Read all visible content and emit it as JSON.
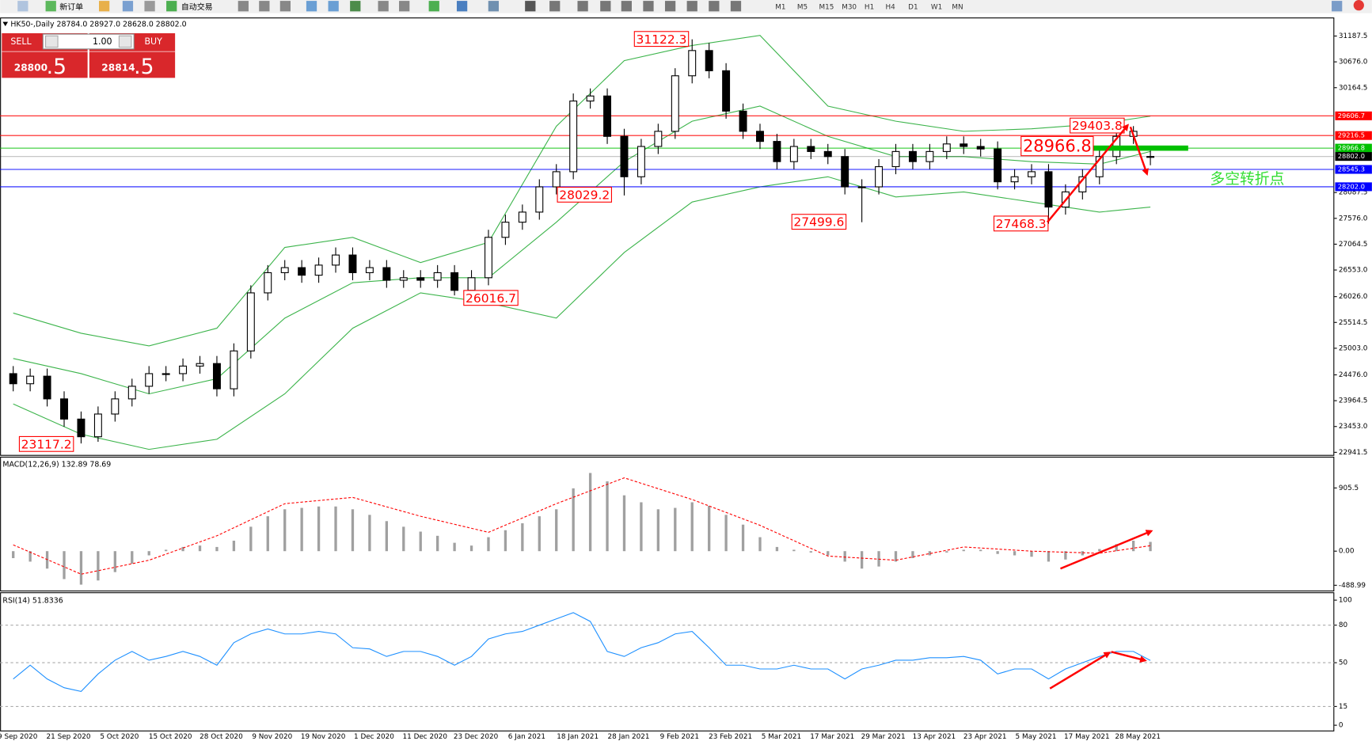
{
  "toolbar": {
    "new_order": "新订单",
    "auto_trading": "自动交易",
    "timeframes": [
      "M1",
      "M5",
      "M15",
      "M30",
      "H1",
      "H4",
      "D1",
      "W1",
      "MN"
    ]
  },
  "trade_panel": {
    "sell": "SELL",
    "lot": "1.00",
    "buy": "BUY",
    "sell_price_main": "28800",
    "sell_price_frac": ".5",
    "buy_price_main": "28814",
    "buy_price_frac": ".5"
  },
  "chart_data": [
    {
      "type": "candlestick",
      "title": "HK50-,Daily 28784.0 28927.0 28628.0 28802.0",
      "categories": [
        "9 Sep 2020",
        null,
        null,
        "21 Sep 2020",
        null,
        null,
        "5 Oct 2020",
        null,
        null,
        "15 Oct 2020",
        null,
        null,
        "28 Oct 2020",
        null,
        null,
        "9 Nov 2020",
        null,
        null,
        "19 Nov 2020",
        null,
        null,
        "1 Dec 2020",
        null,
        null,
        "11 Dec 2020",
        null,
        null,
        "23 Dec 2020",
        null,
        null,
        "6 Jan 2021",
        null,
        null,
        "18 Jan 2021",
        null,
        null,
        "28 Jan 2021",
        null,
        null,
        "9 Feb 2021",
        null,
        null,
        "23 Feb 2021",
        null,
        null,
        "5 Mar 2021",
        null,
        null,
        "17 Mar 2021",
        null,
        null,
        "29 Mar 2021",
        null,
        null,
        "13 Apr 2021",
        null,
        null,
        "23 Apr 2021",
        null,
        null,
        "5 May 2021",
        null,
        null,
        "17 May 2021",
        null,
        null,
        "28 May 2021",
        null
      ],
      "open": [
        24500,
        24300,
        24450,
        24000,
        23600,
        23250,
        23700,
        24000,
        24250,
        24500,
        24500,
        24650,
        24700,
        24200,
        24950,
        26100,
        26500,
        26600,
        26450,
        26650,
        26850,
        26500,
        26600,
        26350,
        26400,
        26350,
        26500,
        26150,
        26400,
        27200,
        27500,
        27700,
        28200,
        28500,
        29900,
        30000,
        29200,
        28400,
        29000,
        29300,
        30400,
        30900,
        30500,
        29700,
        29300,
        29100,
        28700,
        29000,
        28900,
        28800,
        28200,
        28200,
        28600,
        28900,
        28700,
        28900,
        29050,
        29000,
        28950,
        28300,
        28400,
        28500,
        27800,
        28100,
        28400,
        28800,
        29200,
        28784.0
      ],
      "high": [
        24650,
        24600,
        24600,
        24150,
        23750,
        23850,
        24150,
        24400,
        24650,
        24650,
        24800,
        24850,
        24850,
        25100,
        26250,
        26650,
        26750,
        26750,
        26800,
        27000,
        27000,
        26750,
        26750,
        26550,
        26550,
        26650,
        26650,
        26550,
        27350,
        27650,
        27850,
        28350,
        28650,
        30050,
        30150,
        30150,
        29350,
        29150,
        29450,
        30550,
        31122.3,
        31050,
        30650,
        29850,
        29450,
        29250,
        29150,
        29150,
        29050,
        28950,
        28350,
        28750,
        29050,
        29050,
        29050,
        29200,
        29200,
        29150,
        29100,
        28550,
        28650,
        28650,
        28250,
        28550,
        28950,
        29350,
        29403.8,
        28927.0
      ],
      "low": [
        24150,
        24150,
        23850,
        23450,
        23117.2,
        23150,
        23550,
        23850,
        24100,
        24350,
        24350,
        24500,
        24050,
        24050,
        24800,
        25950,
        26350,
        26300,
        26300,
        26500,
        26350,
        26350,
        26200,
        26200,
        26200,
        26200,
        26050,
        26016.7,
        26250,
        27050,
        27350,
        27550,
        28050,
        28350,
        29750,
        29050,
        28029.2,
        28250,
        28850,
        29150,
        30250,
        30350,
        29550,
        29150,
        28950,
        28550,
        28550,
        28750,
        28650,
        28050,
        27499.6,
        28050,
        28450,
        28550,
        28550,
        28750,
        28850,
        28800,
        28150,
        28150,
        28250,
        27468.3,
        27650,
        27950,
        28250,
        28650,
        29050,
        28628.0
      ],
      "close": [
        24300,
        24450,
        24000,
        23600,
        23250,
        23700,
        24000,
        24250,
        24500,
        24500,
        24650,
        24700,
        24200,
        24950,
        26100,
        26500,
        26600,
        26450,
        26650,
        26850,
        26500,
        26600,
        26350,
        26400,
        26350,
        26500,
        26150,
        26400,
        27200,
        27500,
        27700,
        28200,
        28500,
        29900,
        30000,
        29200,
        28400,
        29000,
        29300,
        30400,
        30900,
        30500,
        29700,
        29300,
        29100,
        28700,
        29000,
        28900,
        28800,
        28200,
        28200,
        28600,
        28900,
        28700,
        28900,
        29050,
        29000,
        28950,
        28300,
        28400,
        28500,
        27800,
        28100,
        28400,
        28800,
        29200,
        29300,
        28802.0
      ],
      "bollinger": {
        "color": "#3cb44b",
        "x": [
          0,
          4,
          8,
          12,
          16,
          20,
          24,
          28,
          32,
          36,
          40,
          44,
          48,
          52,
          56,
          60,
          64,
          67
        ],
        "upper": [
          25700,
          25300,
          25050,
          25400,
          27000,
          27200,
          26700,
          27100,
          29400,
          30700,
          31000,
          31200,
          29800,
          29500,
          29300,
          29350,
          29450,
          29600
        ],
        "middle": [
          24800,
          24500,
          24100,
          24400,
          25600,
          26300,
          26400,
          26400,
          27500,
          28700,
          29500,
          29800,
          29200,
          28800,
          28800,
          28700,
          28650,
          28900
        ],
        "lower": [
          23900,
          23300,
          23000,
          23200,
          24100,
          25400,
          26100,
          25900,
          25600,
          26900,
          27900,
          28200,
          28400,
          28000,
          28100,
          27900,
          27700,
          27800
        ]
      },
      "levels": [
        {
          "value": 29606.7,
          "color": "#ff0000"
        },
        {
          "value": 29216.5,
          "color": "#ff0000"
        },
        {
          "value": 28966.8,
          "color": "#00c000"
        },
        {
          "value": 28802.0,
          "label": "28802.0",
          "color": "#000000"
        },
        {
          "value": 28545.3,
          "color": "#0000ff"
        },
        {
          "value": 28202.0,
          "label": "28202.0",
          "color": "#0000ff"
        }
      ],
      "annotations": [
        "31122.3",
        "28029.2",
        "27499.6",
        "27468.3",
        "26016.7",
        "23117.2",
        "29403.8",
        "28966.8",
        "多空转折点"
      ],
      "ylim": [
        22890,
        31520
      ],
      "yticks": [
        31187.5,
        {
          "value": 30676,
          "label": "30676.0"
        },
        30164.5,
        28087.5,
        {
          "value": 27576,
          "label": "27576.0"
        },
        27064.5,
        {
          "value": 26553,
          "label": "26553.0"
        },
        {
          "value": 26026,
          "label": "26026.0"
        },
        25514.5,
        {
          "value": 25003,
          "label": "25003.0"
        },
        {
          "value": 24476,
          "label": "24476.0"
        },
        23964.5,
        {
          "value": 23453,
          "label": "23453.0"
        },
        22941.5
      ]
    },
    {
      "type": "macd",
      "title": "MACD(12,26,9) 132.89 78.69",
      "color": "#a0a0a0",
      "values": [
        -100,
        -150,
        -250,
        -400,
        -480,
        -420,
        -300,
        -180,
        -60,
        20,
        60,
        80,
        60,
        150,
        350,
        500,
        600,
        620,
        640,
        640,
        600,
        520,
        430,
        350,
        280,
        220,
        120,
        80,
        200,
        300,
        400,
        500,
        600,
        900,
        1120,
        1000,
        800,
        700,
        600,
        620,
        700,
        650,
        520,
        380,
        200,
        60,
        20,
        -20,
        -60,
        -150,
        -250,
        -220,
        -150,
        -100,
        -60,
        -20,
        20,
        20,
        -40,
        -60,
        -80,
        -150,
        -120,
        -60,
        30,
        100,
        150,
        132.89
      ],
      "signal": {
        "color": "#ff0000",
        "x": [
          0,
          4,
          8,
          12,
          16,
          20,
          24,
          28,
          32,
          36,
          40,
          44,
          48,
          52,
          56,
          60,
          64,
          67
        ],
        "values": [
          90,
          -330,
          -130,
          220,
          680,
          770,
          500,
          270,
          680,
          1050,
          740,
          370,
          -70,
          -130,
          60,
          0,
          -30,
          78.69
        ]
      },
      "ylim": [
        -564,
        1341
      ],
      "yticks": [
        905.5,
        {
          "value": 0,
          "label": "0.00"
        },
        -488.99
      ]
    },
    {
      "type": "line",
      "title": "RSI(14) 51.8336",
      "color": "#1e90ff",
      "values": [
        37,
        48,
        37,
        30,
        27,
        41,
        52,
        59,
        52,
        55,
        59,
        55,
        48,
        66,
        73,
        77,
        73,
        73,
        75,
        73,
        62,
        61,
        55,
        59,
        59,
        55,
        48,
        55,
        69,
        73,
        75,
        80,
        85,
        90,
        83,
        59,
        55,
        62,
        66,
        73,
        75,
        62,
        48,
        48,
        45,
        45,
        48,
        45,
        45,
        37,
        45,
        48,
        52,
        52,
        54,
        54,
        55,
        52,
        41,
        45,
        45,
        37,
        45,
        50,
        55,
        59,
        59,
        51.8336
      ],
      "ylim": [
        -4.2,
        105.6
      ],
      "yticks": [
        100,
        80,
        50,
        15,
        0
      ]
    }
  ]
}
